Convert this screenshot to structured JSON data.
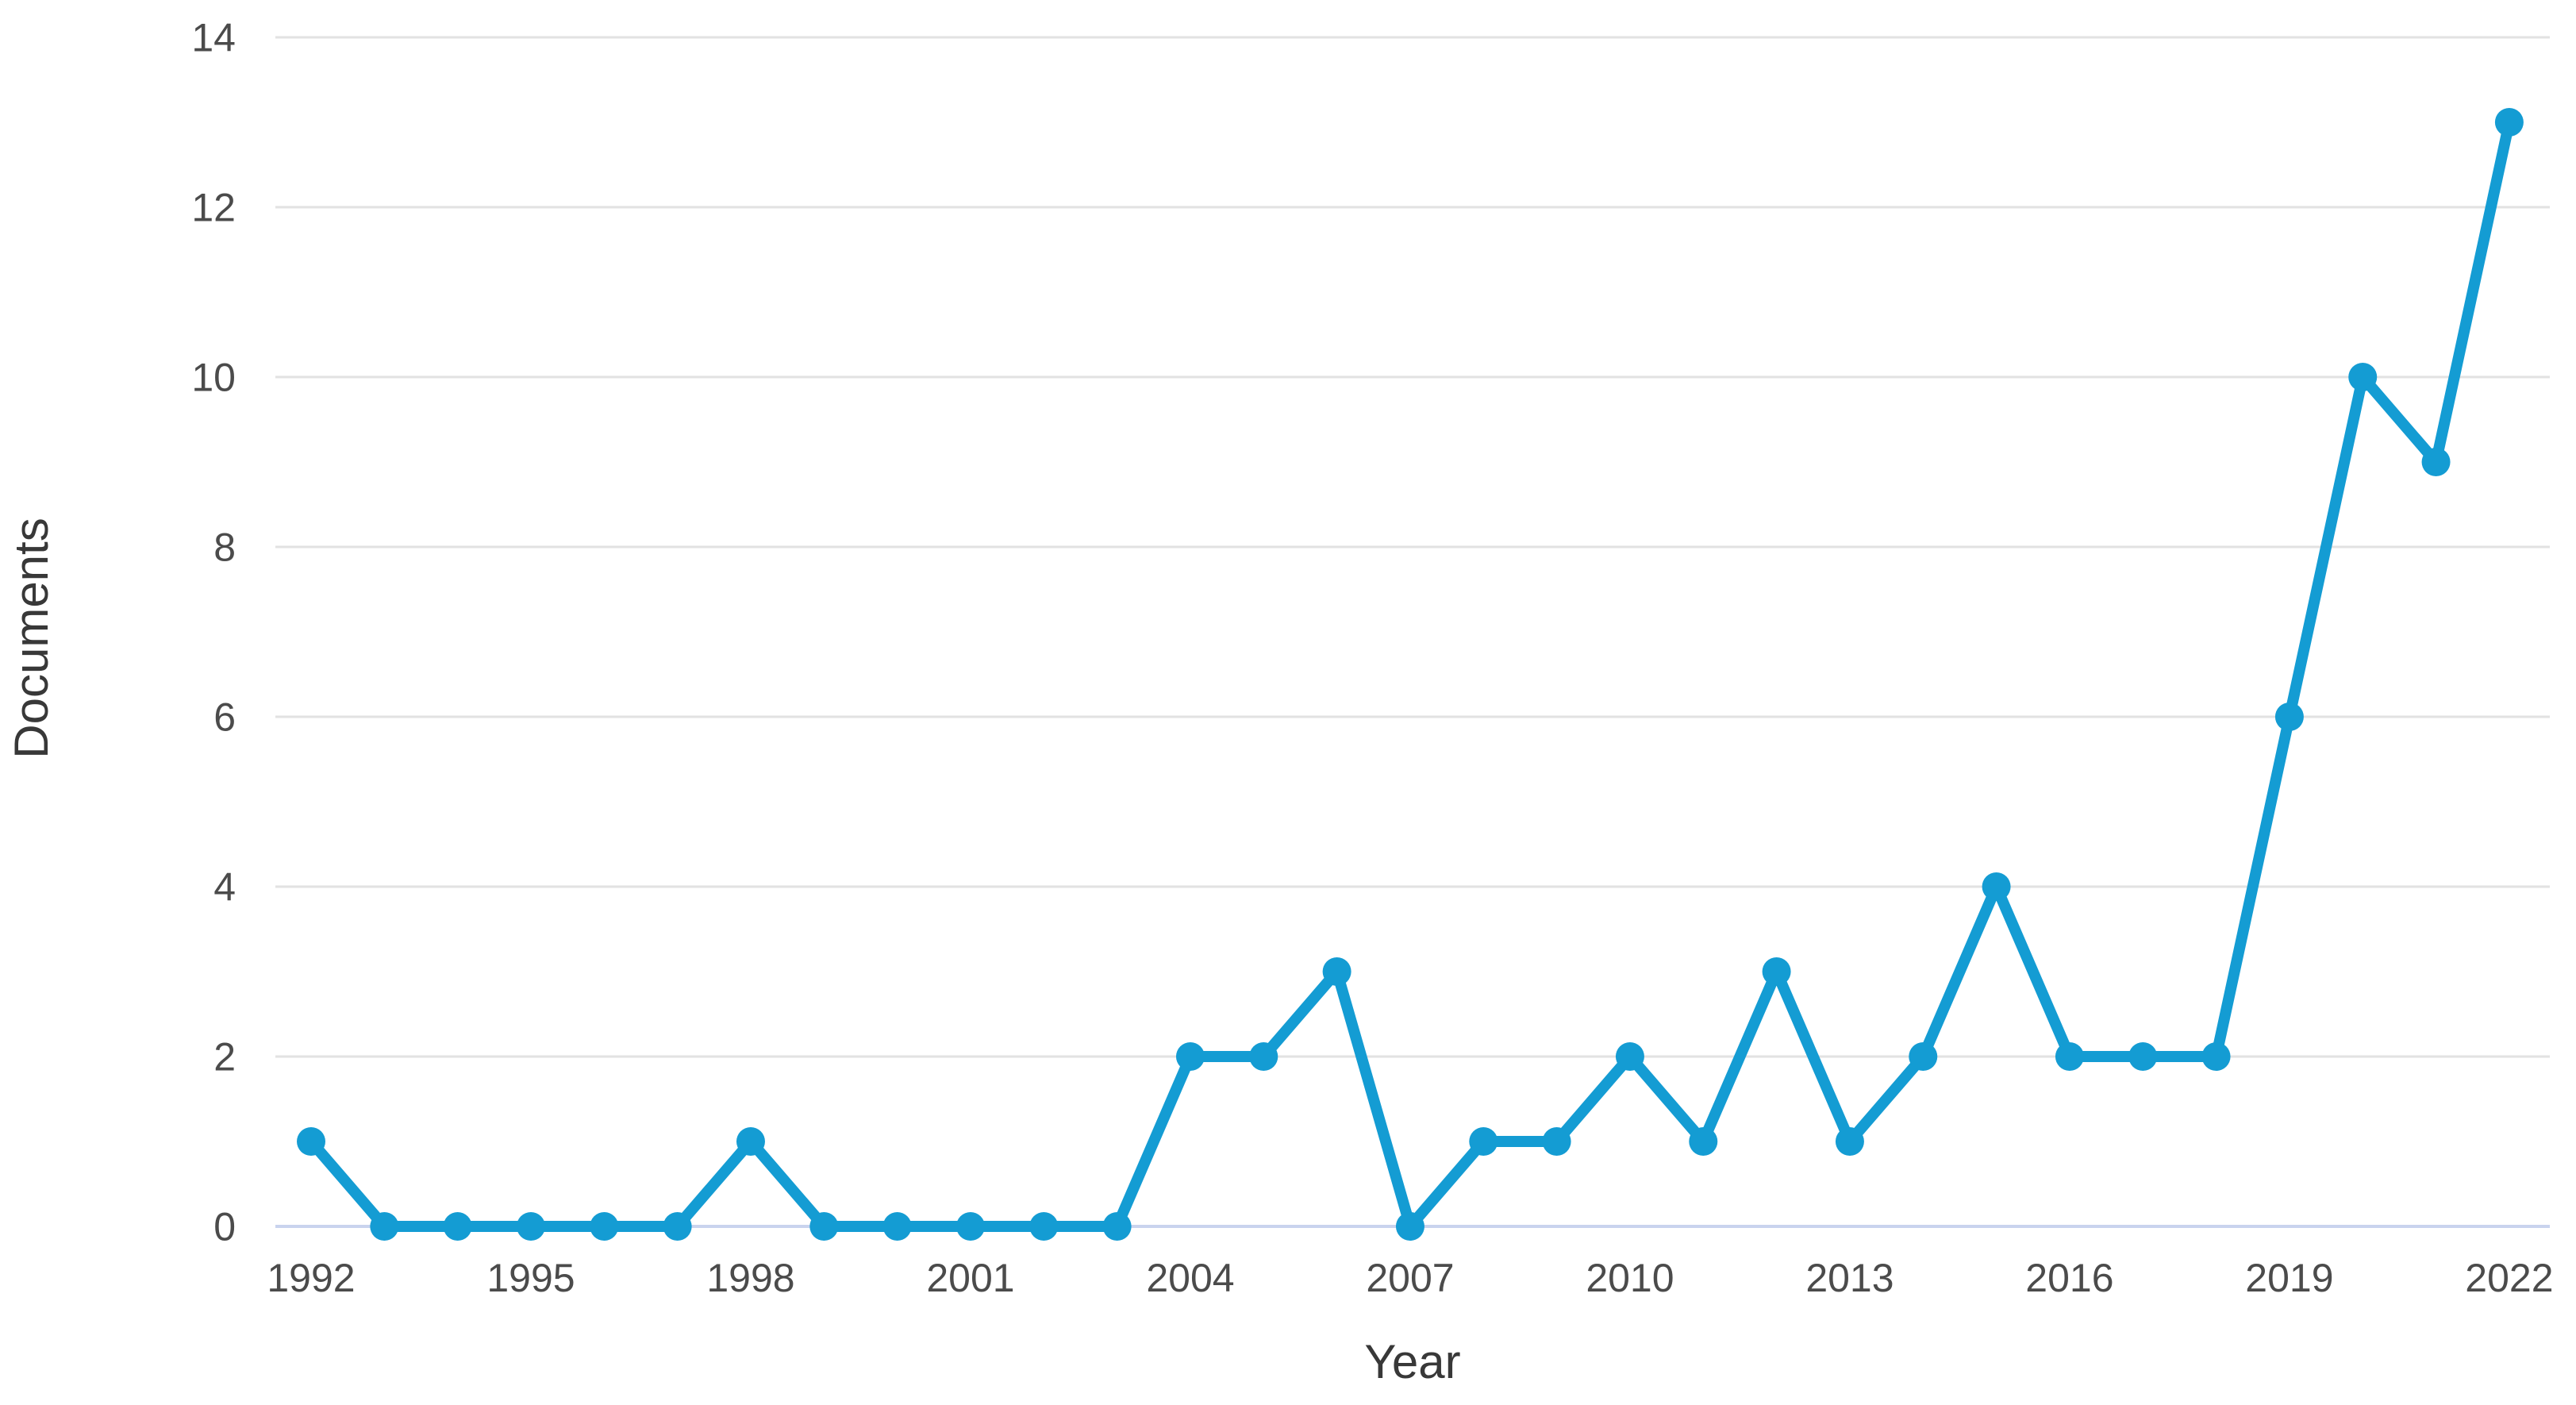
{
  "chart_data": {
    "type": "line",
    "title": "",
    "xlabel": "Year",
    "ylabel": "Documents",
    "x": [
      1992,
      1993,
      1994,
      1995,
      1996,
      1997,
      1998,
      1999,
      2000,
      2001,
      2002,
      2003,
      2004,
      2005,
      2006,
      2007,
      2008,
      2009,
      2010,
      2011,
      2012,
      2013,
      2014,
      2015,
      2016,
      2017,
      2018,
      2019,
      2020,
      2021,
      2022
    ],
    "values": [
      1,
      0,
      0,
      0,
      0,
      0,
      1,
      0,
      0,
      0,
      0,
      0,
      2,
      2,
      3,
      0,
      1,
      1,
      2,
      1,
      3,
      1,
      2,
      4,
      2,
      2,
      2,
      6,
      10,
      9,
      13
    ],
    "x_ticks": [
      1992,
      1995,
      1998,
      2001,
      2004,
      2007,
      2010,
      2013,
      2016,
      2019,
      2022
    ],
    "y_ticks": [
      0,
      2,
      4,
      6,
      8,
      10,
      12,
      14
    ],
    "ylim": [
      0,
      14
    ],
    "grid": "horizontal-only",
    "legend": "none",
    "colors": {
      "line": "#149cd3",
      "marker": "#149cd3",
      "gridline": "#e2e2e2",
      "zero_baseline": "#c9d3ee",
      "tick_text": "#4b4b4b",
      "axis_title_text": "#383838",
      "background": "#ffffff"
    }
  }
}
